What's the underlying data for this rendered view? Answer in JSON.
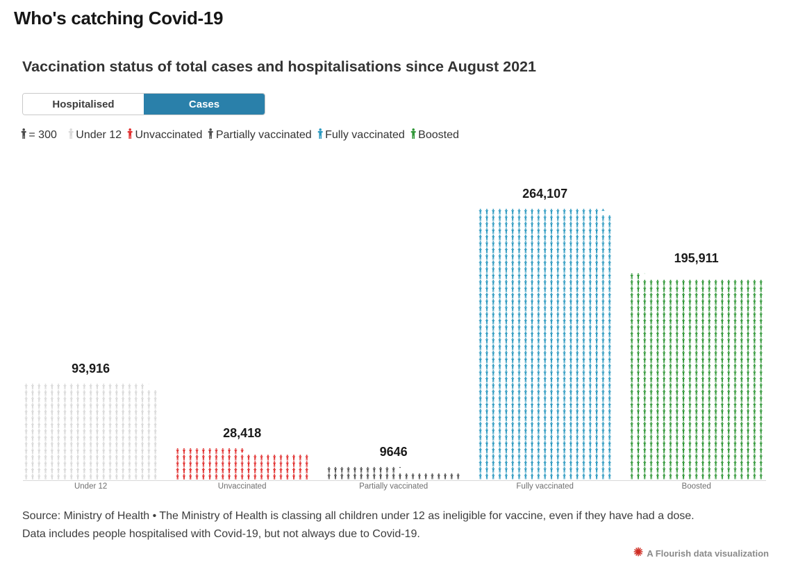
{
  "header": {
    "title": "Who's catching Covid-19"
  },
  "chart": {
    "subtitle": "Vaccination status of total cases and hospitalisations since August 2021",
    "tabs": [
      {
        "label": "Hospitalised",
        "active": false
      },
      {
        "label": "Cases",
        "active": true
      }
    ],
    "tab_active_color": "#2a80aa",
    "legend_unit_label": "= 300",
    "legend_unit_color": "#4a4a4a",
    "source_line1": "Source: Ministry of Health • The Ministry of Health is classing all children under 12 as ineligible for vaccine, even if they have had a dose.",
    "source_line2": "Data includes people hospitalised with Covid-19, but not always due to Covid-19.",
    "credit": "A Flourish data visualization",
    "credit_icon_color": "#cf2d23"
  },
  "chart_data": {
    "type": "pictogram-bar",
    "title": "Vaccination status of total cases and hospitalisations since August 2021",
    "unit_per_icon": 300,
    "columns_per_bar": 21,
    "categories": [
      "Under 12",
      "Unvaccinated",
      "Partially vaccinated",
      "Fully vaccinated",
      "Boosted"
    ],
    "values": [
      93916,
      28418,
      9646,
      264107,
      195911
    ],
    "value_labels": [
      "93,916",
      "28,418",
      "9646",
      "264,107",
      "195,911"
    ],
    "colors": [
      "#d9d9d9",
      "#e12f2f",
      "#4f4f4f",
      "#2b99c0",
      "#2f9636"
    ],
    "legend_entries": [
      "Under 12",
      "Unvaccinated",
      "Partially vaccinated",
      "Fully vaccinated",
      "Boosted"
    ],
    "grid": false,
    "legend_position": "top"
  }
}
